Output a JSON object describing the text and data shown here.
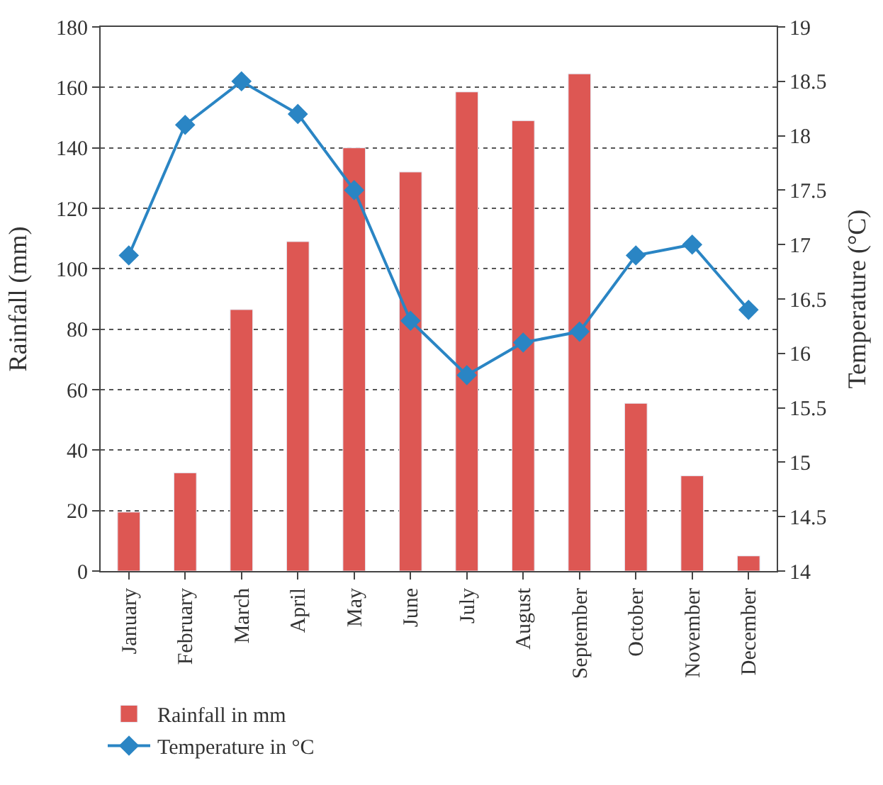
{
  "chart_data": {
    "type": "bar",
    "categories": [
      "January",
      "February",
      "March",
      "April",
      "May",
      "June",
      "July",
      "August",
      "September",
      "October",
      "November",
      "December"
    ],
    "series": [
      {
        "name": "Rainfall in mm",
        "color": "#dd5753",
        "values": [
          19.5,
          32.5,
          86.5,
          109,
          140,
          132,
          158.5,
          149,
          164.5,
          55.5,
          31.5,
          5
        ]
      },
      {
        "name": "Temperature in °C",
        "type": "line",
        "axis": "y2",
        "color": "#2a85c4",
        "marker": "diamond",
        "line_style": "solid",
        "values": [
          16.9,
          18.1,
          18.5,
          18.2,
          17.5,
          16.3,
          15.8,
          16.1,
          16.2,
          16.9,
          17.0,
          16.4
        ]
      }
    ],
    "ylabel": "Rainfall (mm)",
    "y2label": "Temperature (°C)",
    "ylim": [
      0,
      180
    ],
    "yticks": [
      0,
      20,
      40,
      60,
      80,
      100,
      120,
      140,
      160,
      180
    ],
    "y2lim": [
      14,
      19
    ],
    "y2ticks": [
      14,
      14.5,
      15,
      15.5,
      16,
      16.5,
      17,
      17.5,
      18,
      18.5,
      19
    ],
    "grid": "y",
    "legend": "bottom"
  }
}
